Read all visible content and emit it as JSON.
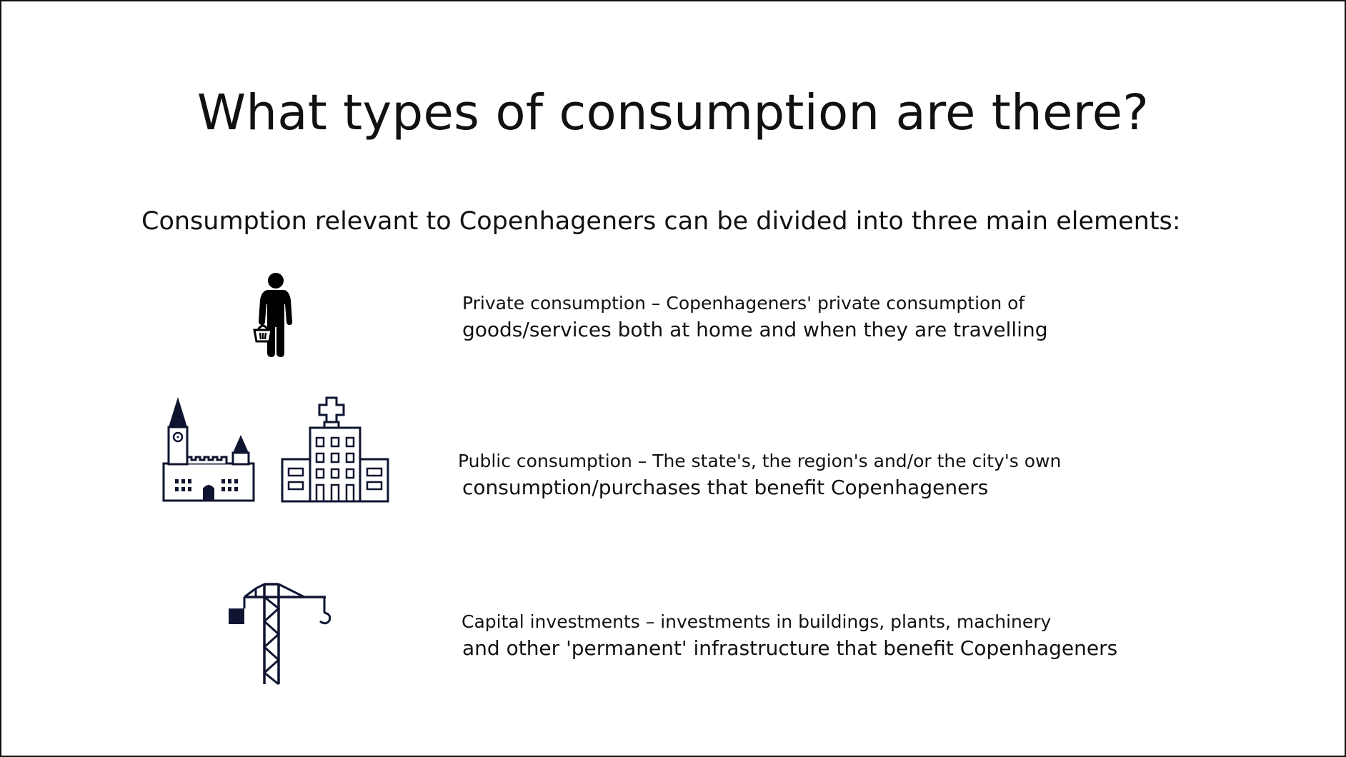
{
  "slide": {
    "title": "What types of consumption are there?",
    "intro": "Consumption relevant to Copenhageners can be divided into three main elements:",
    "items": [
      {
        "icons": [
          "person-with-basket-icon"
        ],
        "line1": "Private consumption – Copenhageners' private consumption of",
        "line2": "goods/services both at home and when they are travelling"
      },
      {
        "icons": [
          "city-hall-icon",
          "hospital-icon"
        ],
        "line1": "Public consumption – The state's, the region's and/or the city's own",
        "line2": "consumption/purchases that benefit Copenhageners"
      },
      {
        "icons": [
          "construction-crane-icon"
        ],
        "line1": "Capital investments – investments in buildings, plants, machinery",
        "line2": "and other 'permanent' infrastructure that benefit Copenhageners"
      }
    ],
    "colors": {
      "text": "#111111",
      "icon_dark": "#0f1530",
      "border": "#111111",
      "background": "#ffffff"
    }
  }
}
